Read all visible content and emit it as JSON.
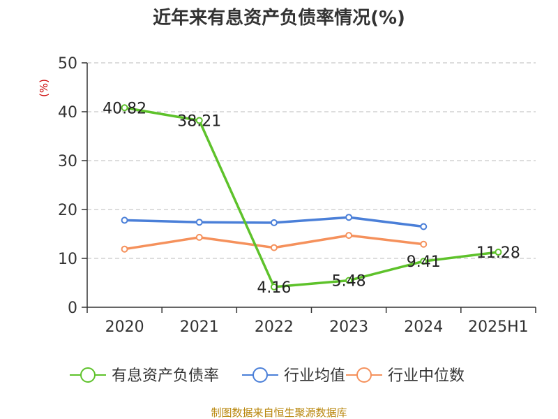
{
  "chart_data": {
    "type": "line",
    "title": "近年来有息资产负债率情况(%)",
    "ylabel": "(%)",
    "xlabel": "",
    "categories": [
      "2020",
      "2021",
      "2022",
      "2023",
      "2024",
      "2025H1"
    ],
    "ylim": [
      0,
      50
    ],
    "yticks": [
      "0",
      "10",
      "20",
      "30",
      "40",
      "50"
    ],
    "grid": true,
    "legend_position": "bottom",
    "series": [
      {
        "name": "有息资产负债率",
        "color": "#5ec22b",
        "values": [
          40.82,
          38.21,
          4.16,
          5.48,
          9.41,
          11.28
        ],
        "labels": [
          "40.82",
          "38.21",
          "4.16",
          "5.48",
          "9.41",
          "11.28"
        ]
      },
      {
        "name": "行业均值",
        "color": "#4a7fd8",
        "values": [
          17.8,
          17.4,
          17.3,
          18.4,
          16.5,
          null
        ]
      },
      {
        "name": "行业中位数",
        "color": "#f5915c",
        "values": [
          11.9,
          14.3,
          12.2,
          14.7,
          12.9,
          null
        ]
      }
    ],
    "source": "制图数据来自恒生聚源数据库"
  }
}
